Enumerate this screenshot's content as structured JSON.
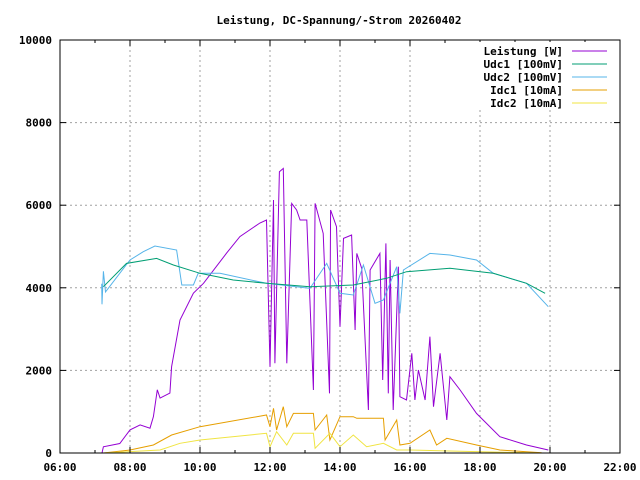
{
  "chart_data": {
    "type": "line",
    "title": "Leistung, DC-Spannung/-Strom 20260402",
    "xlabel": "",
    "ylabel": "",
    "xlim_hours": [
      6,
      22
    ],
    "ylim": [
      0,
      10000
    ],
    "grid": true,
    "legend_position": "top-right",
    "x_tick_labels": [
      "06:00",
      "08:00",
      "10:00",
      "12:00",
      "14:00",
      "16:00",
      "18:00",
      "20:00",
      "22:00"
    ],
    "y_tick_labels": [
      "0",
      "2000",
      "4000",
      "6000",
      "8000",
      "10000"
    ],
    "series": [
      {
        "name": "Leistung [W]",
        "color": "#9400d3",
        "points": [
          [
            7.2,
            0
          ],
          [
            7.24,
            150
          ],
          [
            7.71,
            230
          ],
          [
            8.0,
            560
          ],
          [
            8.29,
            680
          ],
          [
            8.57,
            600
          ],
          [
            8.67,
            880
          ],
          [
            8.78,
            1530
          ],
          [
            8.86,
            1330
          ],
          [
            9.14,
            1450
          ],
          [
            9.19,
            2090
          ],
          [
            9.43,
            3220
          ],
          [
            9.81,
            3870
          ],
          [
            10.1,
            4110
          ],
          [
            10.76,
            4840
          ],
          [
            11.14,
            5240
          ],
          [
            11.71,
            5570
          ],
          [
            11.9,
            5641
          ],
          [
            12.0,
            2090
          ],
          [
            12.1,
            6125
          ],
          [
            12.14,
            2171
          ],
          [
            12.27,
            6811
          ],
          [
            12.38,
            6892
          ],
          [
            12.48,
            2171
          ],
          [
            12.62,
            6044
          ],
          [
            12.76,
            5883
          ],
          [
            12.86,
            5641
          ],
          [
            13.05,
            5641
          ],
          [
            13.24,
            1525
          ],
          [
            13.29,
            6044
          ],
          [
            13.52,
            5318
          ],
          [
            13.7,
            1444
          ],
          [
            13.73,
            5883
          ],
          [
            13.9,
            5480
          ],
          [
            14.0,
            3059
          ],
          [
            14.1,
            5197
          ],
          [
            14.33,
            5278
          ],
          [
            14.43,
            2978
          ],
          [
            14.48,
            4834
          ],
          [
            14.62,
            4471
          ],
          [
            14.81,
            1041
          ],
          [
            14.86,
            4431
          ],
          [
            15.14,
            4834
          ],
          [
            15.22,
            1767
          ],
          [
            15.31,
            5076
          ],
          [
            15.38,
            1444
          ],
          [
            15.43,
            4673
          ],
          [
            15.52,
            1041
          ],
          [
            15.67,
            4511
          ],
          [
            15.71,
            1364
          ],
          [
            15.9,
            1283
          ],
          [
            16.05,
            2413
          ],
          [
            16.14,
            1283
          ],
          [
            16.24,
            2010
          ],
          [
            16.43,
            1283
          ],
          [
            16.57,
            2816
          ],
          [
            16.67,
            1122
          ],
          [
            16.86,
            2413
          ],
          [
            17.05,
            799
          ],
          [
            17.14,
            1848
          ],
          [
            17.43,
            1525
          ],
          [
            17.9,
            960
          ],
          [
            18.57,
            395
          ],
          [
            19.33,
            194
          ],
          [
            19.95,
            73
          ]
        ]
      },
      {
        "name": "Udc1 [100mV]",
        "color": "#009e73",
        "points": [
          [
            7.24,
            4027
          ],
          [
            7.9,
            4592
          ],
          [
            8.76,
            4713
          ],
          [
            9.24,
            4551
          ],
          [
            10.0,
            4350
          ],
          [
            10.95,
            4188
          ],
          [
            11.9,
            4108
          ],
          [
            13.14,
            4027
          ],
          [
            14.38,
            4067
          ],
          [
            15.33,
            4229
          ],
          [
            15.9,
            4390
          ],
          [
            17.14,
            4471
          ],
          [
            18.38,
            4350
          ],
          [
            19.33,
            4108
          ],
          [
            19.86,
            3866
          ]
        ]
      },
      {
        "name": "Udc2 [100mV]",
        "color": "#56b4e9",
        "points": [
          [
            7.19,
            4100
          ],
          [
            7.2,
            3600
          ],
          [
            7.24,
            4400
          ],
          [
            7.3,
            3900
          ],
          [
            8.0,
            4674
          ],
          [
            8.38,
            4874
          ],
          [
            8.71,
            5011
          ],
          [
            9.33,
            4915
          ],
          [
            9.48,
            4067
          ],
          [
            9.81,
            4067
          ],
          [
            9.95,
            4350
          ],
          [
            10.57,
            4350
          ],
          [
            11.9,
            4108
          ],
          [
            13.14,
            3986
          ],
          [
            13.62,
            4592
          ],
          [
            14.0,
            3866
          ],
          [
            14.38,
            3826
          ],
          [
            14.67,
            4551
          ],
          [
            15.0,
            3624
          ],
          [
            15.24,
            3705
          ],
          [
            15.62,
            4511
          ],
          [
            15.71,
            3382
          ],
          [
            15.81,
            4431
          ],
          [
            16.57,
            4834
          ],
          [
            17.14,
            4794
          ],
          [
            17.9,
            4673
          ],
          [
            18.38,
            4350
          ],
          [
            19.33,
            4108
          ],
          [
            19.95,
            3543
          ]
        ]
      },
      {
        "name": "Idc1 [10mA]",
        "color": "#e69f00",
        "points": [
          [
            7.24,
            0
          ],
          [
            8.0,
            73
          ],
          [
            8.67,
            194
          ],
          [
            9.19,
            436
          ],
          [
            10.0,
            637
          ],
          [
            11.9,
            920
          ],
          [
            12.0,
            637
          ],
          [
            12.1,
            1082
          ],
          [
            12.19,
            557
          ],
          [
            12.38,
            1122
          ],
          [
            12.48,
            637
          ],
          [
            12.67,
            960
          ],
          [
            13.24,
            960
          ],
          [
            13.29,
            557
          ],
          [
            13.62,
            920
          ],
          [
            13.71,
            315
          ],
          [
            14.0,
            880
          ],
          [
            14.38,
            880
          ],
          [
            14.48,
            839
          ],
          [
            15.24,
            839
          ],
          [
            15.29,
            315
          ],
          [
            15.62,
            799
          ],
          [
            15.71,
            194
          ],
          [
            16.0,
            234
          ],
          [
            16.57,
            557
          ],
          [
            16.76,
            194
          ],
          [
            17.05,
            355
          ],
          [
            17.9,
            194
          ],
          [
            18.57,
            73
          ],
          [
            19.76,
            7
          ]
        ]
      },
      {
        "name": "Idc2 [10mA]",
        "color": "#f0e442",
        "points": [
          [
            7.24,
            0
          ],
          [
            8.86,
            73
          ],
          [
            9.43,
            234
          ],
          [
            10.0,
            315
          ],
          [
            11.9,
            476
          ],
          [
            12.0,
            153
          ],
          [
            12.19,
            516
          ],
          [
            12.48,
            194
          ],
          [
            12.67,
            476
          ],
          [
            13.24,
            476
          ],
          [
            13.29,
            113
          ],
          [
            13.71,
            476
          ],
          [
            14.0,
            153
          ],
          [
            14.38,
            436
          ],
          [
            14.76,
            153
          ],
          [
            15.24,
            234
          ],
          [
            15.62,
            73
          ],
          [
            16.0,
            73
          ],
          [
            17.43,
            40
          ],
          [
            19.76,
            0
          ]
        ]
      }
    ]
  }
}
